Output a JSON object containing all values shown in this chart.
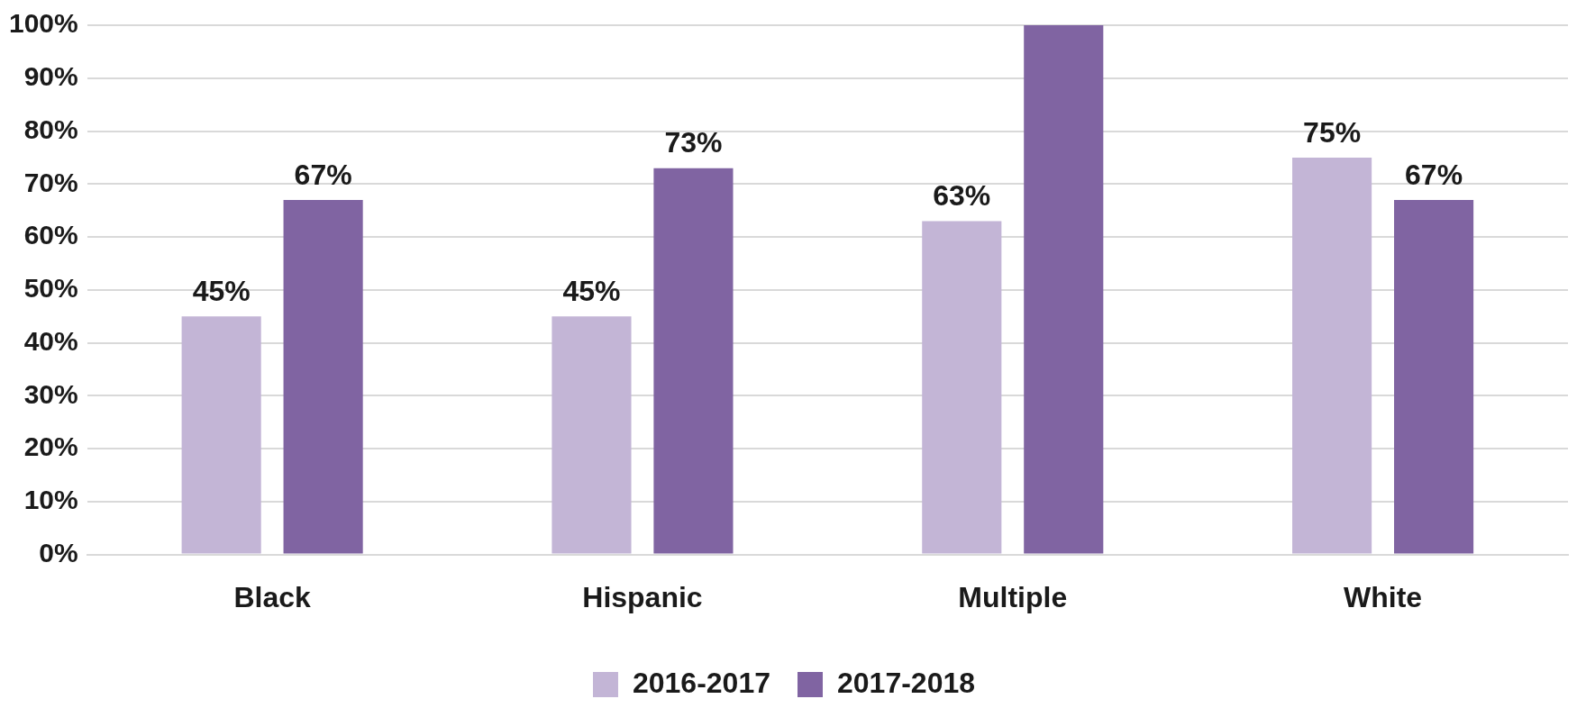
{
  "chart_data": {
    "type": "bar",
    "categories": [
      "Black",
      "Hispanic",
      "Multiple",
      "White"
    ],
    "series": [
      {
        "name": "2016-2017",
        "color": "#c3b5d6",
        "values": [
          45,
          45,
          63,
          75
        ],
        "value_labels": [
          "45%",
          "45%",
          "63%",
          "75%"
        ]
      },
      {
        "name": "2017-2018",
        "color": "#8064a2",
        "values": [
          67,
          73,
          100,
          67
        ],
        "value_labels": [
          "67%",
          "73%",
          null,
          "67%"
        ]
      }
    ],
    "ylim": [
      0,
      100
    ],
    "yticks": [
      {
        "value": 0,
        "label": "0%"
      },
      {
        "value": 10,
        "label": "10%"
      },
      {
        "value": 20,
        "label": "20%"
      },
      {
        "value": 30,
        "label": "30%"
      },
      {
        "value": 40,
        "label": "40%"
      },
      {
        "value": 50,
        "label": "50%"
      },
      {
        "value": 60,
        "label": "60%"
      },
      {
        "value": 70,
        "label": "70%"
      },
      {
        "value": 80,
        "label": "80%"
      },
      {
        "value": 90,
        "label": "90%"
      },
      {
        "value": 100,
        "label": "100%"
      }
    ],
    "grid": "y",
    "legend": "bottom"
  }
}
